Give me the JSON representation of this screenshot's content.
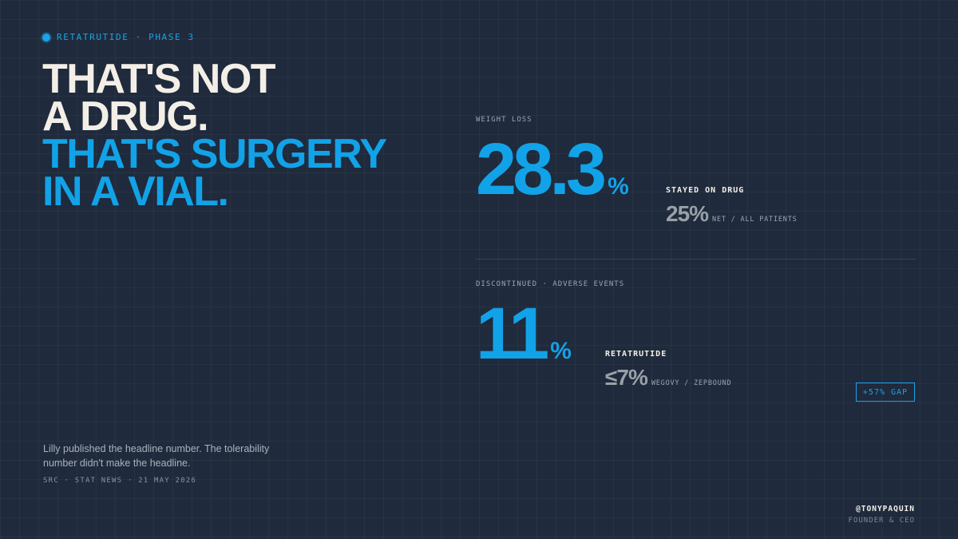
{
  "eyebrow": {
    "text": "RETATRUTIDE · PHASE 3",
    "icon": "dot-icon"
  },
  "headline": {
    "line1": "THAT'S NOT",
    "line2": "A DRUG.",
    "line3": "THAT'S SURGERY",
    "line4": "IN A VIAL."
  },
  "caption": "Lilly published the headline number. The tolerability number didn't make the headline.",
  "source": "SRC · STAT NEWS · 21 MAY 2026",
  "stat1": {
    "label": "WEIGHT LOSS",
    "value": "28.3",
    "unit": "%",
    "sublabel": "STAYED ON DRUG",
    "secondary_value": "25%",
    "secondary_desc": "NET / ALL PATIENTS"
  },
  "stat2": {
    "label": "DISCONTINUED · ADVERSE EVENTS",
    "value": "11",
    "unit": "%",
    "sublabel": "RETATRUTIDE",
    "secondary_value": "≤7%",
    "secondary_desc": "WEGOVY / ZEPBOUND",
    "badge": "+57% GAP"
  },
  "signature": {
    "handle": "@TONYPAQUIN",
    "role": "FOUNDER & CEO"
  },
  "colors": {
    "background": "#1f2a3c",
    "accent": "#12a2e8",
    "headline_white": "#f3efe7",
    "muted": "#9aa0a8"
  }
}
